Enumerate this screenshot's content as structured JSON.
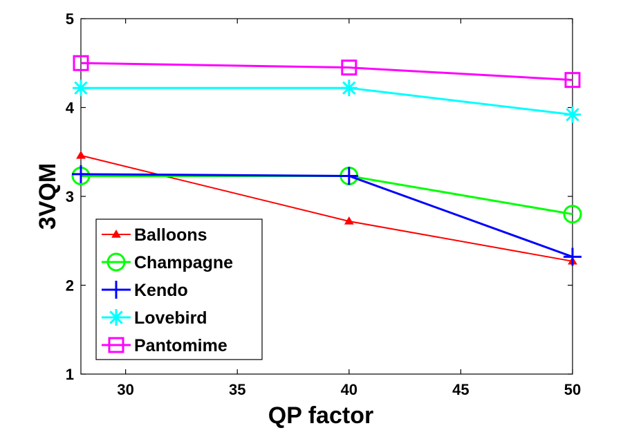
{
  "chart_data": {
    "type": "line",
    "title": "",
    "xlabel": "QP factor",
    "ylabel": "3VQM",
    "xlim": [
      28,
      50
    ],
    "ylim": [
      1,
      5
    ],
    "xticks": [
      30,
      35,
      40,
      45,
      50
    ],
    "yticks": [
      1,
      2,
      3,
      4,
      5
    ],
    "x": [
      28,
      40,
      50
    ],
    "legend_position": "bottom-left",
    "series": [
      {
        "name": "Balloons",
        "values": [
          3.46,
          2.72,
          2.27
        ],
        "color": "#ff0000",
        "marker": "triangle"
      },
      {
        "name": "Champagne",
        "values": [
          3.23,
          3.23,
          2.8
        ],
        "color": "#00ff00",
        "marker": "circle"
      },
      {
        "name": "Kendo",
        "values": [
          3.25,
          3.23,
          2.32
        ],
        "color": "#0000ff",
        "marker": "plus"
      },
      {
        "name": "Lovebird",
        "values": [
          4.22,
          4.22,
          3.92
        ],
        "color": "#00ffff",
        "marker": "asterisk"
      },
      {
        "name": "Pantomime",
        "values": [
          4.5,
          4.45,
          4.31
        ],
        "color": "#ff00ff",
        "marker": "square"
      }
    ]
  }
}
